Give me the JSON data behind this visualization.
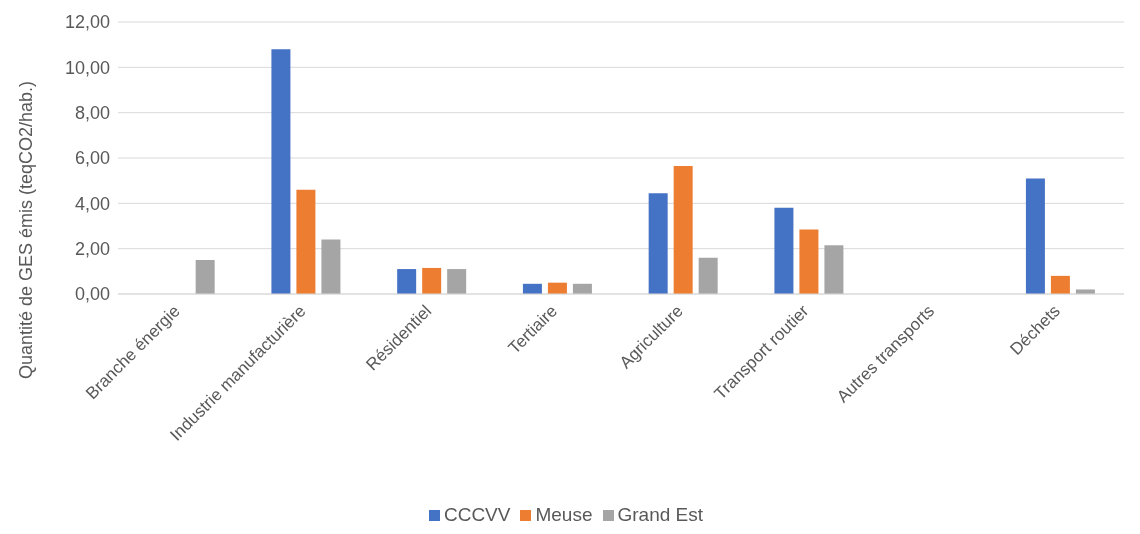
{
  "chart_data": {
    "type": "bar",
    "ylabel": "Quantité de GES émis (teqCO2/hab.)",
    "categories": [
      "Branche énergie",
      "Industrie manufacturière",
      "Résidentiel",
      "Tertiaire",
      "Agriculture",
      "Transport routier",
      "Autres transports",
      "Déchets"
    ],
    "series": [
      {
        "name": "CCCVV",
        "color": "#4472c4",
        "values": [
          0,
          10.8,
          1.1,
          0.45,
          4.45,
          3.8,
          null,
          5.1
        ]
      },
      {
        "name": "Meuse",
        "color": "#ed7d31",
        "values": [
          0,
          4.6,
          1.15,
          0.5,
          5.65,
          2.85,
          null,
          0.8
        ]
      },
      {
        "name": "Grand Est",
        "color": "#a5a5a5",
        "values": [
          1.5,
          2.4,
          1.1,
          0.45,
          1.6,
          2.15,
          null,
          0.2
        ]
      }
    ],
    "ylim": [
      0,
      12
    ],
    "yticks": [
      {
        "value": 0,
        "label": "0,00"
      },
      {
        "value": 2,
        "label": "2,00"
      },
      {
        "value": 4,
        "label": "4,00"
      },
      {
        "value": 6,
        "label": "6,00"
      },
      {
        "value": 8,
        "label": "8,00"
      },
      {
        "value": 10,
        "label": "10,00"
      },
      {
        "value": 12,
        "label": "12,00"
      }
    ],
    "grid": "y",
    "legend": "bottom"
  }
}
